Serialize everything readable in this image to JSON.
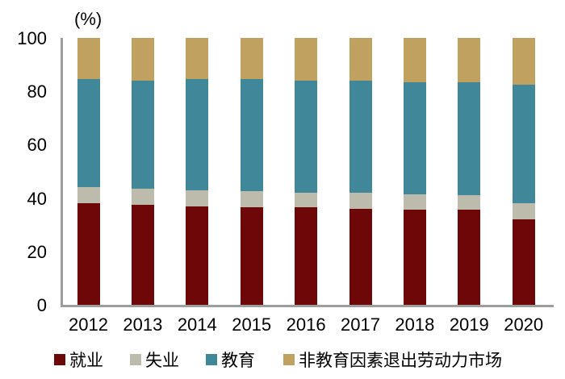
{
  "chart_data": {
    "type": "bar",
    "stacked": true,
    "title": "",
    "ylabel": "(%)",
    "xlabel": "",
    "categories": [
      "2012",
      "2013",
      "2014",
      "2015",
      "2016",
      "2017",
      "2018",
      "2019",
      "2020"
    ],
    "series": [
      {
        "key": "employment",
        "name": "就业",
        "color": "#6D0708",
        "values": [
          38,
          37.5,
          37,
          36.5,
          36.5,
          36,
          35.5,
          35.5,
          32
        ]
      },
      {
        "key": "unemployment",
        "name": "失业",
        "color": "#BDBBAC",
        "values": [
          6,
          6,
          6,
          6,
          5.5,
          6,
          6,
          5.5,
          6
        ]
      },
      {
        "key": "education",
        "name": "教育",
        "color": "#3F8799",
        "values": [
          40.5,
          40.5,
          41.5,
          42,
          42,
          42,
          42,
          42.5,
          44.5
        ]
      },
      {
        "key": "non_education_exit",
        "name": "非教育因素退出劳动力市场",
        "color": "#C1A160",
        "values": [
          15.5,
          16,
          15.5,
          15.5,
          16,
          16,
          16.5,
          16.5,
          17.5
        ]
      }
    ],
    "ylim": [
      0,
      100
    ],
    "yticks": [
      0,
      20,
      40,
      60,
      80,
      100
    ],
    "grid": false,
    "legend_position": "bottom",
    "axis_color": "#9D9D9D",
    "text_color": "#000000",
    "background": "#FFFFFF"
  }
}
